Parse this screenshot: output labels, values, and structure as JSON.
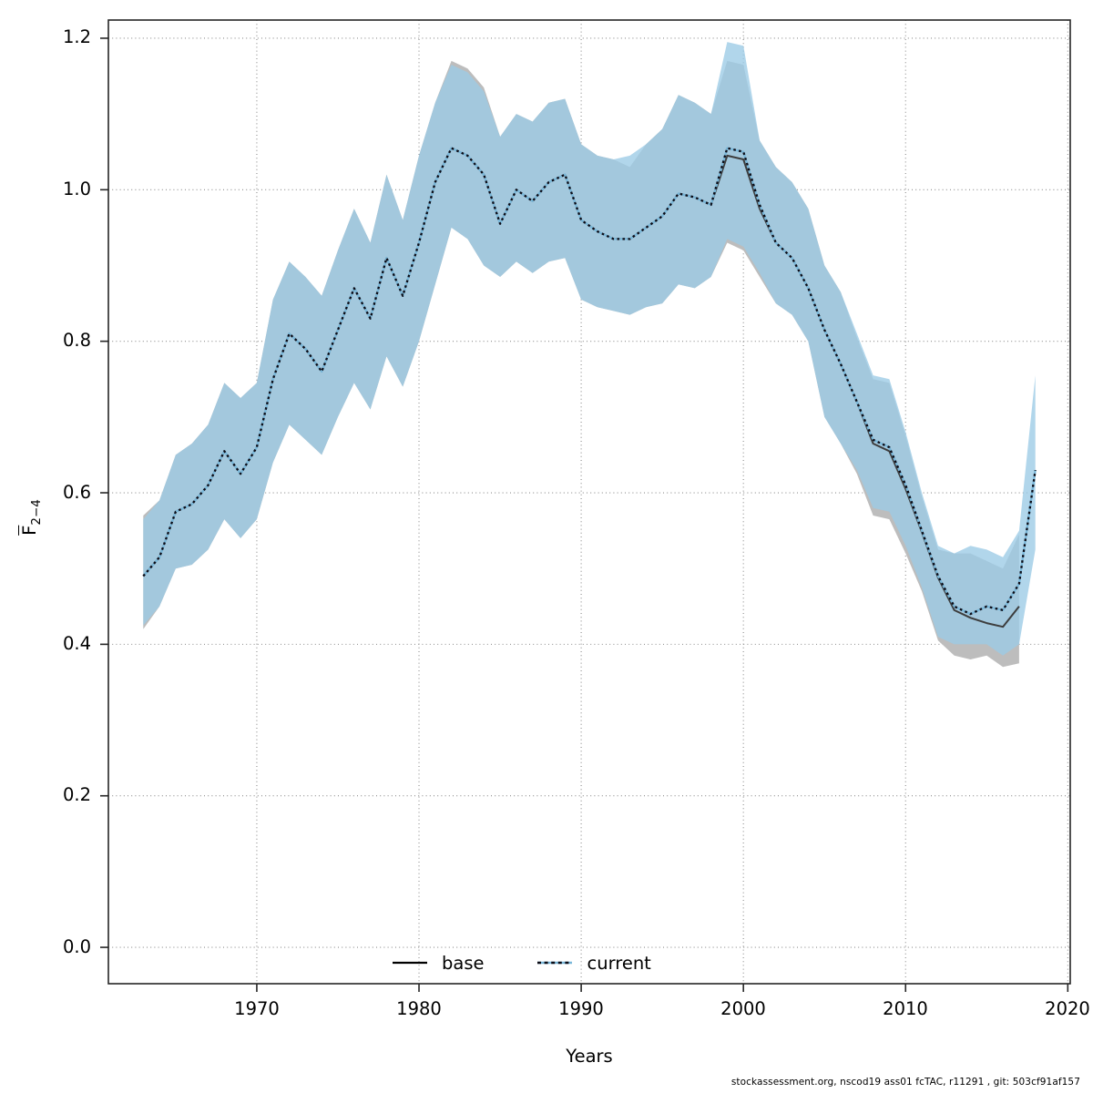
{
  "chart_data": {
    "type": "line",
    "title": "",
    "xlabel": "Years",
    "ylabel_main": "F",
    "ylabel_sub": "2−4",
    "grid": "dotted",
    "legend_position": "bottom-center-inside",
    "xlim": [
      1960.85,
      2020.15
    ],
    "ylim": [
      -0.048,
      1.224
    ],
    "x_ticks": [
      1970,
      1980,
      1990,
      2000,
      2010,
      2020
    ],
    "x_tick_labels": [
      "1970",
      "1980",
      "1990",
      "2000",
      "2010",
      "2020"
    ],
    "y_ticks": [
      0.0,
      0.2,
      0.4,
      0.6,
      0.8,
      1.0,
      1.2
    ],
    "y_tick_labels": [
      "0.0",
      "0.2",
      "0.4",
      "0.6",
      "0.8",
      "1.0",
      "1.2"
    ],
    "x": [
      1963,
      1964,
      1965,
      1966,
      1967,
      1968,
      1969,
      1970,
      1971,
      1972,
      1973,
      1974,
      1975,
      1976,
      1977,
      1978,
      1979,
      1980,
      1981,
      1982,
      1983,
      1984,
      1985,
      1986,
      1987,
      1988,
      1989,
      1990,
      1991,
      1992,
      1993,
      1994,
      1995,
      1996,
      1997,
      1998,
      1999,
      2000,
      2001,
      2002,
      2003,
      2004,
      2005,
      2006,
      2007,
      2008,
      2009,
      2010,
      2011,
      2012,
      2013,
      2014,
      2015,
      2016,
      2017,
      2018
    ],
    "series": [
      {
        "name": "base",
        "line_style": "solid",
        "line_color": "#3d3d3d",
        "band_color": "#bdbdbd",
        "x_start": 1963,
        "values": [
          0.49,
          0.515,
          0.575,
          0.585,
          0.61,
          0.655,
          0.625,
          0.66,
          0.75,
          0.81,
          0.79,
          0.76,
          0.815,
          0.87,
          0.83,
          0.91,
          0.86,
          0.93,
          1.01,
          1.055,
          1.045,
          1.02,
          0.955,
          1.0,
          0.985,
          1.01,
          1.02,
          0.96,
          0.945,
          0.935,
          0.935,
          0.95,
          0.965,
          0.995,
          0.99,
          0.98,
          1.045,
          1.04,
          0.975,
          0.93,
          0.91,
          0.87,
          0.815,
          0.77,
          0.72,
          0.665,
          0.655,
          0.605,
          0.548,
          0.488,
          0.445,
          0.435,
          0.428,
          0.423,
          0.45
        ],
        "lower": [
          0.42,
          0.45,
          0.5,
          0.505,
          0.525,
          0.565,
          0.54,
          0.565,
          0.64,
          0.69,
          0.67,
          0.65,
          0.7,
          0.745,
          0.71,
          0.78,
          0.74,
          0.8,
          0.875,
          0.95,
          0.935,
          0.9,
          0.885,
          0.905,
          0.89,
          0.905,
          0.91,
          0.855,
          0.845,
          0.84,
          0.835,
          0.845,
          0.85,
          0.875,
          0.87,
          0.885,
          0.93,
          0.92,
          0.885,
          0.85,
          0.835,
          0.8,
          0.7,
          0.665,
          0.625,
          0.57,
          0.565,
          0.52,
          0.47,
          0.405,
          0.385,
          0.38,
          0.385,
          0.37,
          0.375
        ],
        "upper": [
          0.57,
          0.59,
          0.65,
          0.665,
          0.69,
          0.745,
          0.725,
          0.745,
          0.855,
          0.905,
          0.885,
          0.86,
          0.92,
          0.975,
          0.93,
          1.02,
          0.96,
          1.045,
          1.115,
          1.17,
          1.16,
          1.135,
          1.07,
          1.1,
          1.09,
          1.115,
          1.12,
          1.06,
          1.045,
          1.04,
          1.03,
          1.06,
          1.08,
          1.125,
          1.115,
          1.1,
          1.17,
          1.165,
          1.065,
          1.03,
          1.01,
          0.975,
          0.9,
          0.865,
          0.805,
          0.75,
          0.745,
          0.675,
          0.595,
          0.525,
          0.52,
          0.52,
          0.51,
          0.5,
          0.545
        ]
      },
      {
        "name": "current",
        "line_style": "dotted",
        "line_color": "#0c0c16",
        "halo_color": "#79b7d9",
        "band_color": "rgba(155,203,229,0.78)",
        "x_start": 1963,
        "values": [
          0.49,
          0.515,
          0.575,
          0.585,
          0.61,
          0.655,
          0.625,
          0.66,
          0.75,
          0.81,
          0.79,
          0.76,
          0.815,
          0.87,
          0.83,
          0.91,
          0.86,
          0.93,
          1.01,
          1.055,
          1.045,
          1.02,
          0.955,
          1.0,
          0.985,
          1.01,
          1.02,
          0.96,
          0.945,
          0.935,
          0.935,
          0.95,
          0.965,
          0.995,
          0.99,
          0.98,
          1.055,
          1.05,
          0.98,
          0.93,
          0.91,
          0.87,
          0.815,
          0.77,
          0.72,
          0.67,
          0.66,
          0.61,
          0.55,
          0.49,
          0.45,
          0.44,
          0.45,
          0.445,
          0.48,
          0.63
        ],
        "lower": [
          0.425,
          0.45,
          0.5,
          0.505,
          0.525,
          0.565,
          0.54,
          0.565,
          0.64,
          0.69,
          0.67,
          0.65,
          0.7,
          0.745,
          0.71,
          0.78,
          0.74,
          0.8,
          0.875,
          0.95,
          0.935,
          0.9,
          0.885,
          0.905,
          0.89,
          0.905,
          0.91,
          0.855,
          0.845,
          0.84,
          0.835,
          0.845,
          0.85,
          0.875,
          0.87,
          0.885,
          0.935,
          0.925,
          0.89,
          0.85,
          0.835,
          0.8,
          0.7,
          0.665,
          0.63,
          0.58,
          0.575,
          0.53,
          0.475,
          0.41,
          0.4,
          0.4,
          0.4,
          0.385,
          0.4,
          0.525
        ],
        "upper": [
          0.565,
          0.59,
          0.65,
          0.665,
          0.69,
          0.745,
          0.725,
          0.745,
          0.855,
          0.905,
          0.885,
          0.86,
          0.92,
          0.975,
          0.93,
          1.02,
          0.96,
          1.045,
          1.115,
          1.165,
          1.155,
          1.13,
          1.07,
          1.1,
          1.09,
          1.115,
          1.12,
          1.06,
          1.045,
          1.04,
          1.045,
          1.06,
          1.08,
          1.125,
          1.115,
          1.1,
          1.195,
          1.19,
          1.065,
          1.03,
          1.01,
          0.975,
          0.9,
          0.865,
          0.81,
          0.755,
          0.75,
          0.68,
          0.6,
          0.53,
          0.52,
          0.53,
          0.525,
          0.515,
          0.55,
          0.755
        ]
      }
    ]
  },
  "legend": {
    "base_label": "base",
    "current_label": "current"
  },
  "axis": {
    "x_title": "Years"
  },
  "footer": {
    "text": "stockassessment.org, nscod19 ass01 fcTAC, r11291 , git: 503cf91af157"
  },
  "colors": {
    "frame": "#262626",
    "grid": "#8c8c8c",
    "base_band": "#bdbdbd",
    "current_band": "rgba(155,203,229,0.78)",
    "base_line": "#3d3d3d",
    "current_line": "#0c0c16",
    "current_halo": "#79b7d9"
  }
}
